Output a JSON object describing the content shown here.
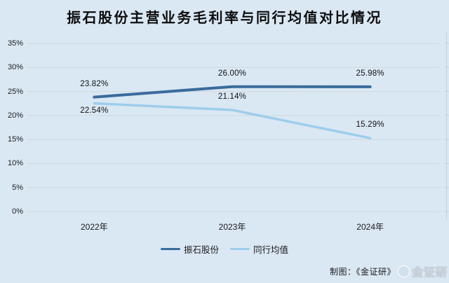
{
  "chart_data": {
    "type": "line",
    "title": "振石股份主营业务毛利率与同行均值对比情况",
    "categories": [
      "2022年",
      "2023年",
      "2024年"
    ],
    "series": [
      {
        "name": "振石股份",
        "values": [
          23.82,
          26.0,
          25.98
        ],
        "labels": [
          "23.82%",
          "26.00%",
          "25.98%"
        ],
        "color": "#3a6b9c"
      },
      {
        "name": "同行均值",
        "values": [
          22.54,
          21.14,
          15.29
        ],
        "labels": [
          "22.54%",
          "21.14%",
          "15.29%"
        ],
        "color": "#9fcdeb"
      }
    ],
    "ylim": [
      0,
      35
    ],
    "ytick_step": 5,
    "ytick_labels": [
      "0%",
      "5%",
      "10%",
      "15%",
      "20%",
      "25%",
      "30%",
      "35%"
    ],
    "grid": true,
    "legend_position": "bottom"
  },
  "footer": {
    "credit": "制图：《金证研》",
    "watermark": "金证研"
  },
  "colors": {
    "background": "#dae8f4",
    "gridline": "#d1d8dc",
    "right_axis": "#c3ced7",
    "text": "#1a1a1a",
    "series1": "#3a6b9c",
    "series2": "#9fcdeb"
  }
}
